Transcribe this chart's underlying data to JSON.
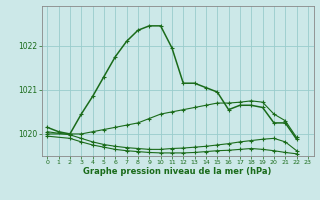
{
  "title": "Graphe pression niveau de la mer (hPa)",
  "bg_color": "#cce8e8",
  "grid_color": "#99cccc",
  "line_color": "#1a6b1a",
  "xlim": [
    -0.5,
    23.5
  ],
  "ylim": [
    1019.5,
    1022.9
  ],
  "yticks": [
    1020,
    1021,
    1022
  ],
  "xticks": [
    0,
    1,
    2,
    3,
    4,
    5,
    6,
    7,
    8,
    9,
    10,
    11,
    12,
    13,
    14,
    15,
    16,
    17,
    18,
    19,
    20,
    21,
    22,
    23
  ],
  "series": [
    {
      "x": [
        0,
        1,
        2,
        3,
        4,
        5,
        6,
        7,
        8,
        9,
        10,
        11,
        12,
        13,
        14,
        15,
        16,
        17,
        18,
        19,
        20,
        21,
        22
      ],
      "y": [
        1020.15,
        1020.05,
        1020.0,
        1020.45,
        1020.85,
        1021.3,
        1021.75,
        1022.1,
        1022.35,
        1022.45,
        1022.45,
        1021.95,
        1021.15,
        1021.15,
        1021.05,
        1020.95,
        1020.55,
        1020.65,
        1020.65,
        1020.6,
        1020.25,
        1020.25,
        1019.88
      ]
    },
    {
      "x": [
        0,
        2,
        3,
        4,
        5,
        6,
        7,
        8,
        9,
        10,
        11,
        12,
        13,
        14,
        15,
        16,
        17,
        18,
        19,
        20,
        21,
        22
      ],
      "y": [
        1020.0,
        1020.0,
        1020.0,
        1020.05,
        1020.1,
        1020.15,
        1020.2,
        1020.25,
        1020.35,
        1020.45,
        1020.5,
        1020.55,
        1020.6,
        1020.65,
        1020.7,
        1020.7,
        1020.72,
        1020.75,
        1020.72,
        1020.45,
        1020.3,
        1019.92
      ]
    },
    {
      "x": [
        0,
        2,
        3,
        4,
        5,
        6,
        7,
        8,
        9,
        10,
        11,
        12,
        13,
        14,
        15,
        16,
        17,
        18,
        19,
        20,
        21,
        22
      ],
      "y": [
        1019.95,
        1019.9,
        1019.82,
        1019.75,
        1019.7,
        1019.65,
        1019.62,
        1019.6,
        1019.58,
        1019.57,
        1019.57,
        1019.57,
        1019.58,
        1019.6,
        1019.62,
        1019.63,
        1019.65,
        1019.67,
        1019.65,
        1019.62,
        1019.58,
        1019.55
      ]
    },
    {
      "x": [
        0,
        2,
        3,
        4,
        5,
        6,
        7,
        8,
        9,
        10,
        11,
        12,
        13,
        14,
        15,
        16,
        17,
        18,
        19,
        20,
        21,
        22
      ],
      "y": [
        1020.05,
        1019.98,
        1019.9,
        1019.82,
        1019.76,
        1019.72,
        1019.69,
        1019.67,
        1019.65,
        1019.65,
        1019.67,
        1019.68,
        1019.7,
        1019.72,
        1019.75,
        1019.78,
        1019.82,
        1019.85,
        1019.88,
        1019.9,
        1019.82,
        1019.62
      ]
    }
  ]
}
